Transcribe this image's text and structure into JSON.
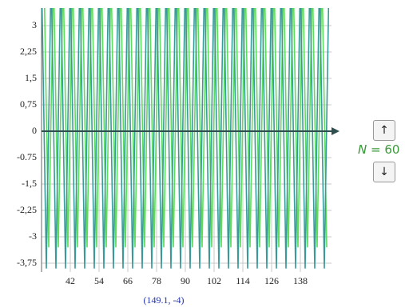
{
  "chart_data": {
    "type": "line",
    "annotation": "(149.1, -4)",
    "xlim": [
      30,
      151
    ],
    "ylim": [
      -4,
      3.5
    ],
    "xticks": [
      42,
      54,
      66,
      78,
      90,
      102,
      114,
      126,
      138
    ],
    "yticks": [
      3,
      {
        "value": 2.25,
        "label": "2,25"
      },
      {
        "value": 1.5,
        "label": "1,5"
      },
      {
        "value": 0.75,
        "label": "0,75"
      },
      0,
      -0.75,
      {
        "value": -1.5,
        "label": "-1,5"
      },
      {
        "value": -2.25,
        "label": "-2,25"
      },
      -3,
      {
        "value": -3.75,
        "label": "-3,75"
      }
    ],
    "grid": true,
    "series": [
      {
        "color": "#3a9a9a",
        "x": [
          30,
          32,
          34,
          36,
          38,
          40,
          42,
          44,
          46,
          48,
          50,
          52,
          54,
          56,
          58,
          60,
          62,
          64,
          66,
          68,
          70,
          72,
          74,
          76,
          78,
          80,
          82,
          84,
          86,
          88,
          90,
          92,
          94,
          96,
          98,
          100,
          102,
          104,
          106,
          108,
          110,
          112,
          114,
          116,
          118,
          120,
          122,
          124,
          126,
          128,
          130,
          132,
          134,
          136,
          138,
          140,
          142,
          144,
          146,
          148,
          150
        ],
        "values": [
          4.5,
          -3.9,
          4.5,
          -3.9,
          4.5,
          -3.9,
          4.5,
          -3.9,
          4.5,
          -3.9,
          4.5,
          -3.9,
          4.5,
          -3.9,
          4.5,
          -3.9,
          4.5,
          -3.9,
          4.5,
          -3.9,
          4.5,
          -3.9,
          4.5,
          -3.9,
          4.5,
          -3.9,
          4.5,
          -3.9,
          4.5,
          -3.9,
          4.5,
          -3.9,
          4.5,
          -3.9,
          4.5,
          -3.9,
          4.5,
          -3.9,
          4.5,
          -3.9,
          4.5,
          -3.9,
          4.5,
          -3.9,
          4.5,
          -3.9,
          4.5,
          -3.9,
          4.5,
          -3.9,
          4.5,
          -3.9,
          4.5,
          -3.9,
          4.5,
          -3.9,
          4.5,
          -3.9,
          4.5,
          -3.9,
          4.5
        ]
      },
      {
        "color": "#5fdc5f",
        "x": [
          31,
          33,
          35,
          37,
          39,
          41,
          43,
          45,
          47,
          49,
          51,
          53,
          55,
          57,
          59,
          61,
          63,
          65,
          67,
          69,
          71,
          73,
          75,
          77,
          79,
          81,
          83,
          85,
          87,
          89,
          91,
          93,
          95,
          97,
          99,
          101,
          103,
          105,
          107,
          109,
          111,
          113,
          115,
          117,
          119,
          121,
          123,
          125,
          127,
          129,
          131,
          133,
          135,
          137,
          139,
          141,
          143,
          145,
          147,
          149
        ],
        "values": [
          4.5,
          -3.3,
          4.5,
          -3.3,
          4.5,
          -3.3,
          4.5,
          -3.3,
          4.5,
          -3.3,
          4.5,
          -3.3,
          4.5,
          -3.3,
          4.5,
          -3.3,
          4.5,
          -3.3,
          4.5,
          -3.3,
          4.5,
          -3.3,
          4.5,
          -3.3,
          4.5,
          -3.3,
          4.5,
          -3.3,
          4.5,
          -3.3,
          4.5,
          -3.3,
          4.5,
          -3.3,
          4.5,
          -3.3,
          4.5,
          -3.3,
          4.5,
          -3.3,
          4.5,
          -3.3,
          4.5,
          -3.3,
          4.5,
          -3.3,
          4.5,
          -3.3,
          4.5,
          -3.3,
          4.5,
          -3.3,
          4.5,
          -3.3,
          4.5,
          -3.3,
          4.5,
          -3.3,
          4.5,
          -3.3
        ]
      }
    ]
  },
  "controls": {
    "up": "↑",
    "n_symbol": "N",
    "n_text": "= 60",
    "down": "↓"
  }
}
